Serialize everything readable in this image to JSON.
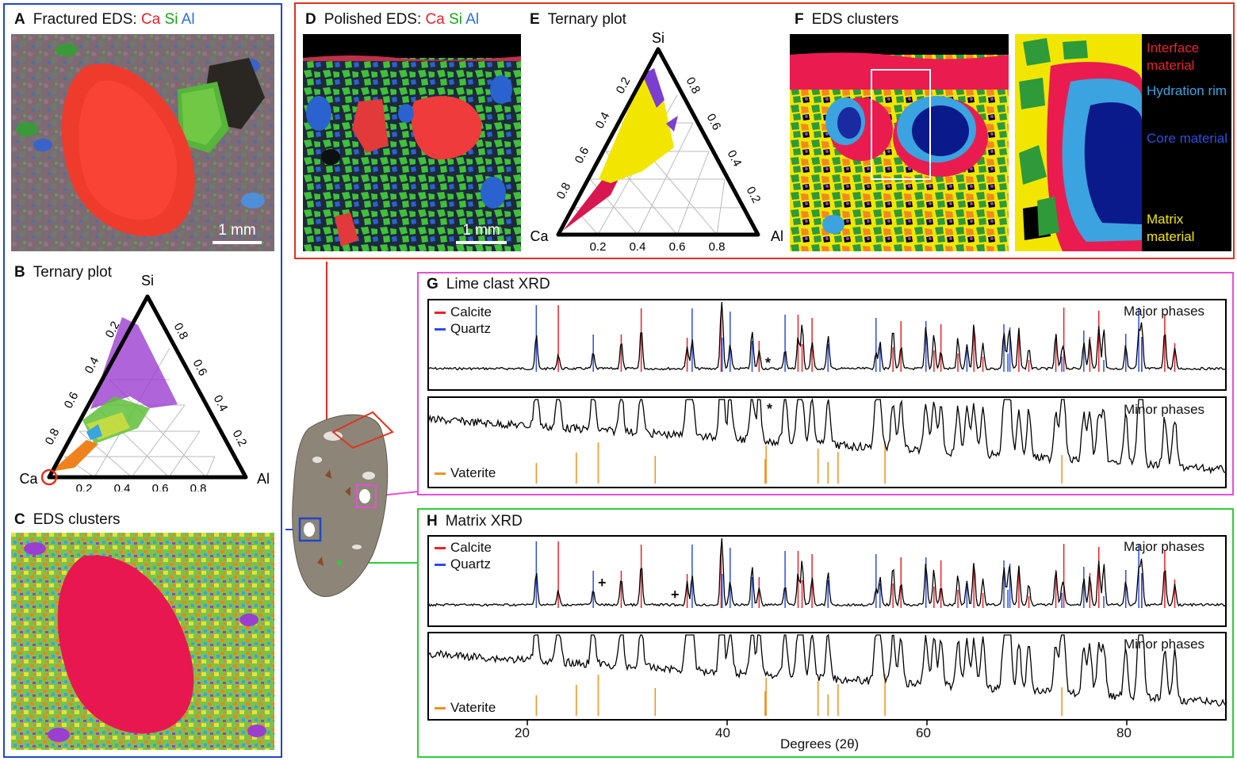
{
  "panels": {
    "A": {
      "letter": "A",
      "title": "Fractured EDS:",
      "ca": "Ca",
      "si": "Si",
      "al": "Al",
      "scale": "1 mm"
    },
    "B": {
      "letter": "B",
      "title": "Ternary plot"
    },
    "C": {
      "letter": "C",
      "title": "EDS clusters"
    },
    "D": {
      "letter": "D",
      "title": "Polished EDS:",
      "ca": "Ca",
      "si": "Si",
      "al": "Al",
      "scale": "1 mm"
    },
    "E": {
      "letter": "E",
      "title": "Ternary plot"
    },
    "F": {
      "letter": "F",
      "title": "EDS clusters",
      "clusters": [
        {
          "label": "Interface material",
          "color": "#e8232b"
        },
        {
          "label": "Hydration rim",
          "color": "#3ba3e0"
        },
        {
          "label": "Core material",
          "color": "#2c4fe0"
        },
        {
          "label": "Matrix material",
          "color": "#f2e600"
        }
      ]
    },
    "G": {
      "letter": "G",
      "title": "Lime clast XRD",
      "major": "Major phases",
      "minor": "Minor phases"
    },
    "H": {
      "letter": "H",
      "title": "Matrix XRD",
      "major": "Major phases",
      "minor": "Minor phases"
    }
  },
  "ternary": {
    "apex_top": "Si",
    "apex_left": "Ca",
    "apex_right": "Al",
    "ticks": [
      "0.2",
      "0.4",
      "0.6",
      "0.8"
    ]
  },
  "legend": {
    "calcite": "Calcite",
    "quartz": "Quartz",
    "vaterite": "Vaterite"
  },
  "markers": {
    "star": "*",
    "plus": "+"
  },
  "colors": {
    "calcite": "#e8232b",
    "quartz": "#2c4fe0",
    "vaterite": "#f0921e",
    "blue_frame": "#1f47c6",
    "red_frame": "#e0321e",
    "magenta_frame": "#e64fd6",
    "green_frame": "#2fcc3a"
  },
  "chart_data": [
    {
      "type": "line",
      "title": "Lime clast XRD — Major phases",
      "xlabel": "Degrees (2θ)",
      "xlim": [
        10,
        90
      ],
      "x_ticks": [
        20,
        40,
        60,
        80
      ],
      "series": [
        {
          "name": "Calcite",
          "peaks": [
            23.1,
            29.4,
            31.4,
            36.0,
            39.4,
            43.2,
            47.1,
            47.5,
            48.5,
            56.6,
            57.4,
            60.7,
            61.4,
            63.1,
            64.7,
            65.6,
            69.2,
            70.2,
            72.9,
            73.7,
            76.3,
            77.2,
            81.5,
            83.8,
            84.8
          ]
        },
        {
          "name": "Quartz",
          "peaks": [
            20.9,
            26.6,
            36.5,
            39.5,
            40.3,
            42.5,
            45.8,
            50.1,
            54.9,
            55.3,
            59.9,
            64.0,
            67.7,
            68.1,
            68.3,
            73.5,
            75.7,
            77.7,
            79.9,
            81.2,
            81.5
          ]
        }
      ]
    },
    {
      "type": "line",
      "title": "Lime clast XRD — Minor phases",
      "xlim": [
        10,
        90
      ],
      "series": [
        {
          "name": "Vaterite",
          "peaks": [
            20.9,
            24.9,
            27.1,
            32.8,
            43.9,
            43.8,
            49.1,
            50.1,
            51.1,
            55.8,
            73.5
          ]
        }
      ]
    },
    {
      "type": "line",
      "title": "Matrix XRD — Major phases",
      "xlim": [
        10,
        90
      ],
      "series": [
        {
          "name": "Calcite",
          "peaks": [
            23.1,
            29.4,
            31.4,
            36.0,
            39.4,
            43.2,
            47.1,
            47.5,
            48.5,
            56.6,
            57.4,
            60.7,
            61.4,
            63.1,
            64.7,
            65.6,
            69.2,
            70.2,
            72.9,
            73.7,
            76.3,
            77.2,
            81.5,
            83.8,
            84.8
          ]
        },
        {
          "name": "Quartz",
          "peaks": [
            20.9,
            26.6,
            36.5,
            39.5,
            40.3,
            42.5,
            45.8,
            50.1,
            54.9,
            55.3,
            59.9,
            64.0,
            67.7,
            68.1,
            68.3,
            73.5,
            75.7,
            77.7,
            79.9,
            81.2,
            81.5
          ]
        }
      ]
    },
    {
      "type": "line",
      "title": "Matrix XRD — Minor phases",
      "xlim": [
        10,
        90
      ],
      "series": [
        {
          "name": "Vaterite",
          "peaks": [
            20.9,
            24.9,
            27.1,
            32.8,
            43.9,
            43.8,
            49.1,
            50.1,
            51.1,
            55.8,
            73.5
          ]
        }
      ]
    }
  ]
}
